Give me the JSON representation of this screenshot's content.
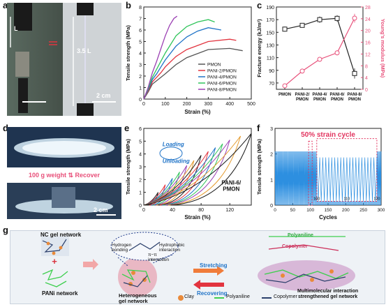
{
  "panel_labels": {
    "a": "a",
    "b": "b",
    "c": "c",
    "d": "d",
    "e": "e",
    "f": "f",
    "g": "g"
  },
  "panel_a": {
    "len_label": "L",
    "len_label_stretched": "3.5 L",
    "scale_bar": "2 cm"
  },
  "panel_d": {
    "weight_label": "100 g weight",
    "recover_label": "Recover",
    "scale_bar": "2 cm"
  },
  "panel_b": {
    "chart_data": {
      "type": "line",
      "xlabel": "Strain (%)",
      "ylabel": "Tensile strength (MPa)",
      "xlim": [
        0,
        500
      ],
      "ylim": [
        0,
        8
      ],
      "xticks": [
        0,
        100,
        200,
        300,
        400,
        500
      ],
      "yticks": [
        0,
        1,
        2,
        3,
        4,
        5,
        6,
        7,
        8
      ],
      "legend_position": "bottom-right",
      "series": [
        {
          "name": "PMON",
          "color": "#555555",
          "x": [
            0,
            20,
            40,
            60,
            80,
            100,
            150,
            200,
            300,
            400,
            460
          ],
          "y": [
            0,
            0.6,
            1.3,
            1.6,
            1.9,
            2.2,
            3.0,
            3.6,
            4.3,
            4.4,
            4.2
          ]
        },
        {
          "name": "PANI-2/PMON",
          "color": "#e2343f",
          "x": [
            0,
            20,
            40,
            60,
            80,
            100,
            150,
            200,
            300,
            400,
            430
          ],
          "y": [
            0,
            0.7,
            1.5,
            1.9,
            2.3,
            2.8,
            3.7,
            4.3,
            5.0,
            5.2,
            5.1
          ]
        },
        {
          "name": "PANI-4/PMON",
          "color": "#1f73c7",
          "x": [
            0,
            20,
            40,
            60,
            80,
            100,
            150,
            200,
            250,
            300,
            360
          ],
          "y": [
            0,
            0.8,
            1.7,
            2.2,
            2.8,
            3.4,
            4.6,
            5.4,
            5.9,
            6.2,
            6.0
          ]
        },
        {
          "name": "PANI-6/PMON",
          "color": "#2fc45a",
          "x": [
            0,
            20,
            40,
            60,
            80,
            100,
            150,
            200,
            250,
            300,
            330
          ],
          "y": [
            0,
            0.9,
            1.9,
            2.6,
            3.3,
            4.0,
            5.5,
            6.3,
            6.7,
            6.9,
            6.7
          ]
        },
        {
          "name": "PANI-8/PMON",
          "color": "#9b3fb3",
          "x": [
            0,
            20,
            40,
            60,
            80,
            100,
            120,
            140,
            155
          ],
          "y": [
            0,
            1.0,
            2.3,
            3.3,
            4.4,
            5.5,
            6.4,
            7.0,
            7.2
          ]
        }
      ]
    }
  },
  "panel_c": {
    "chart_data": {
      "type": "line",
      "categories": [
        "PMON",
        "PANI-2/\nPMON",
        "PANI-4/\nPMON",
        "PANI-6/\nPMON",
        "PANI-8/\nPMON"
      ],
      "ylabel": "Fracture energy (kJ/m²)",
      "y2label": "Young's modulus (MPa)",
      "ylim": [
        60,
        190
      ],
      "yticks": [
        70,
        90,
        110,
        130,
        150,
        170,
        190
      ],
      "y2lim": [
        0,
        28
      ],
      "y2ticks": [
        0,
        4,
        8,
        12,
        16,
        20,
        24,
        28
      ],
      "series": [
        {
          "name": "Fracture energy",
          "axis": "left",
          "color": "#222222",
          "values": [
            155,
            161,
            170,
            172,
            85
          ],
          "errors": [
            4,
            3,
            5,
            5,
            8
          ]
        },
        {
          "name": "Young's modulus",
          "axis": "right",
          "color": "#e8507a",
          "values": [
            1.2,
            6.2,
            10.2,
            12.4,
            24.2
          ],
          "errors": [
            0.5,
            0.8,
            0.8,
            0.8,
            1.5
          ]
        }
      ]
    }
  },
  "panel_e": {
    "chart_data": {
      "type": "line",
      "xlabel": "Strain (%)",
      "ylabel": "Tensile strength (MPa)",
      "xlim": [
        0,
        150
      ],
      "ylim": [
        0,
        6
      ],
      "xticks": [
        0,
        40,
        80,
        120
      ],
      "yticks": [
        0,
        1,
        2,
        3,
        4,
        5,
        6
      ],
      "annotation": "PANI-6/\nPMON",
      "loading_label": "Loading",
      "unloading_label": "Unloading",
      "cycles": [
        {
          "max_strain": 20,
          "max_stress": 1.0,
          "color": "#1a1a1a"
        },
        {
          "max_strain": 30,
          "max_stress": 1.6,
          "color": "#e2343f"
        },
        {
          "max_strain": 40,
          "max_stress": 2.1,
          "color": "#1f73c7"
        },
        {
          "max_strain": 50,
          "max_stress": 2.6,
          "color": "#2fc45a"
        },
        {
          "max_strain": 60,
          "max_stress": 3.1,
          "color": "#9b3fb3"
        },
        {
          "max_strain": 70,
          "max_stress": 3.5,
          "color": "#e59b2e"
        },
        {
          "max_strain": 80,
          "max_stress": 3.9,
          "color": "#1a1a1a"
        },
        {
          "max_strain": 90,
          "max_stress": 4.2,
          "color": "#e2343f"
        },
        {
          "max_strain": 100,
          "max_stress": 4.5,
          "color": "#1f73c7"
        },
        {
          "max_strain": 110,
          "max_stress": 4.8,
          "color": "#2fc45a"
        },
        {
          "max_strain": 120,
          "max_stress": 5.1,
          "color": "#9b3fb3"
        },
        {
          "max_strain": 135,
          "max_stress": 5.4,
          "color": "#e59b2e"
        },
        {
          "max_strain": 150,
          "max_stress": 5.6,
          "color": "#1a1a1a"
        }
      ]
    }
  },
  "panel_f": {
    "chart_data": {
      "type": "line",
      "title": "50% strain cycle",
      "xlabel": "Cycles",
      "ylabel": "Tensile strength (MPa)",
      "xlim": [
        0,
        300
      ],
      "ylim": [
        0,
        3
      ],
      "xticks": [
        0,
        50,
        100,
        150,
        200,
        250,
        300
      ],
      "yticks": [
        0,
        1,
        2,
        3
      ],
      "cycle_min": 0.0,
      "cycle_max": 2.1,
      "inset": {
        "xlim": [
          100,
          120
        ],
        "ylim": [
          0,
          3
        ],
        "xticks": [
          100,
          110,
          120
        ]
      },
      "color": "#2d8fe0"
    }
  },
  "panel_g": {
    "nc_gel_network": "NC gel network",
    "pani_network": "PANi network",
    "heterogeneous": "Heterogeneous\ngel network",
    "hydrogen_bonding": "Hydrogen\nbonding",
    "hydrophobic": "Hydrophobic\ninteraction",
    "pi_pi": "π−π\ninteraction",
    "stretching": "Stretching",
    "recovering": "Recovering",
    "polyaniline_label": "Polyaniline",
    "copolymer_label": "Copolymer",
    "multimolecular": "Multimolecular interaction\nstrengthened gel network",
    "legend": [
      {
        "label": "Clay",
        "color": "#e98a3a"
      },
      {
        "label": "Polyaniline",
        "color": "#3fcf4f"
      },
      {
        "label": "Copolymer",
        "color": "#2b3f6b"
      }
    ]
  }
}
